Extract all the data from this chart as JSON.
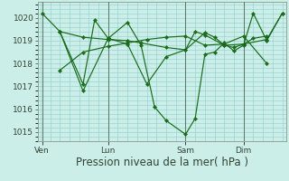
{
  "bg_color": "#cceee8",
  "plot_bg_color": "#cceee8",
  "grid_color": "#88cccc",
  "line_color": "#1a6b1a",
  "vline_color": "#557766",
  "spine_color": "#889988",
  "tick_color": "#334433",
  "title": "Pression niveau de la mer( hPa )",
  "title_fontsize": 8.5,
  "ylim": [
    1014.6,
    1020.7
  ],
  "yticks": [
    1015,
    1016,
    1017,
    1018,
    1019,
    1020
  ],
  "ylabel_fontsize": 7,
  "day_labels": [
    "Ven",
    "Lun",
    "Sam",
    "Dim"
  ],
  "day_positions": [
    0.08,
    3.5,
    7.5,
    10.5
  ],
  "vline_positions": [
    0.08,
    3.5,
    7.5,
    10.5
  ],
  "xlim": [
    -0.15,
    12.7
  ],
  "lines": [
    {
      "x": [
        0.08,
        1.0,
        2.2,
        3.5,
        4.5,
        5.2,
        5.9,
        6.5,
        7.5,
        8.0,
        8.5,
        9.0,
        9.5,
        10.0,
        10.5,
        11.0,
        11.7,
        12.5
      ],
      "y": [
        1020.2,
        1019.4,
        1016.8,
        1019.1,
        1019.8,
        1018.8,
        1016.1,
        1015.5,
        1014.9,
        1015.6,
        1018.4,
        1018.5,
        1018.9,
        1018.55,
        1018.8,
        1020.2,
        1019.0,
        1020.2
      ]
    },
    {
      "x": [
        1.0,
        2.2,
        3.5,
        4.5,
        5.2,
        6.5,
        7.5,
        8.5,
        9.0,
        9.5,
        10.0,
        10.5,
        11.0,
        11.7
      ],
      "y": [
        1019.4,
        1019.15,
        1019.05,
        1019.0,
        1018.9,
        1018.7,
        1018.6,
        1019.35,
        1019.15,
        1018.8,
        1018.7,
        1018.85,
        1019.1,
        1019.2
      ]
    },
    {
      "x": [
        1.0,
        2.2,
        2.8,
        3.5,
        4.5,
        5.5,
        6.5,
        7.5,
        8.0,
        8.5,
        9.5,
        10.5,
        11.7,
        12.5
      ],
      "y": [
        1019.4,
        1017.1,
        1019.9,
        1019.1,
        1018.85,
        1017.1,
        1018.3,
        1018.6,
        1019.4,
        1019.25,
        1018.8,
        1018.85,
        1019.05,
        1020.2
      ]
    },
    {
      "x": [
        1.0,
        2.2,
        3.5,
        4.5,
        5.5,
        6.5,
        7.5,
        8.5,
        9.5,
        10.5,
        11.7
      ],
      "y": [
        1017.7,
        1018.5,
        1018.75,
        1018.9,
        1019.05,
        1019.15,
        1019.2,
        1018.8,
        1018.85,
        1019.2,
        1018.0
      ]
    }
  ]
}
